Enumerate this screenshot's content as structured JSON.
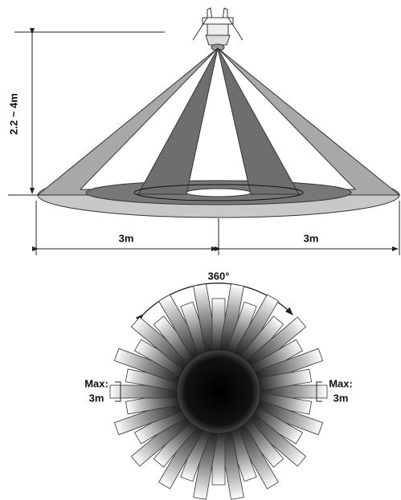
{
  "height_label": "2.2 ~ 4m",
  "width_labels": [
    "3m",
    "3m"
  ],
  "angle_label": "360°",
  "range_labels": [
    {
      "line1": "Max:",
      "line2": "3m"
    },
    {
      "line1": "Max:",
      "line2": "3m"
    }
  ]
}
